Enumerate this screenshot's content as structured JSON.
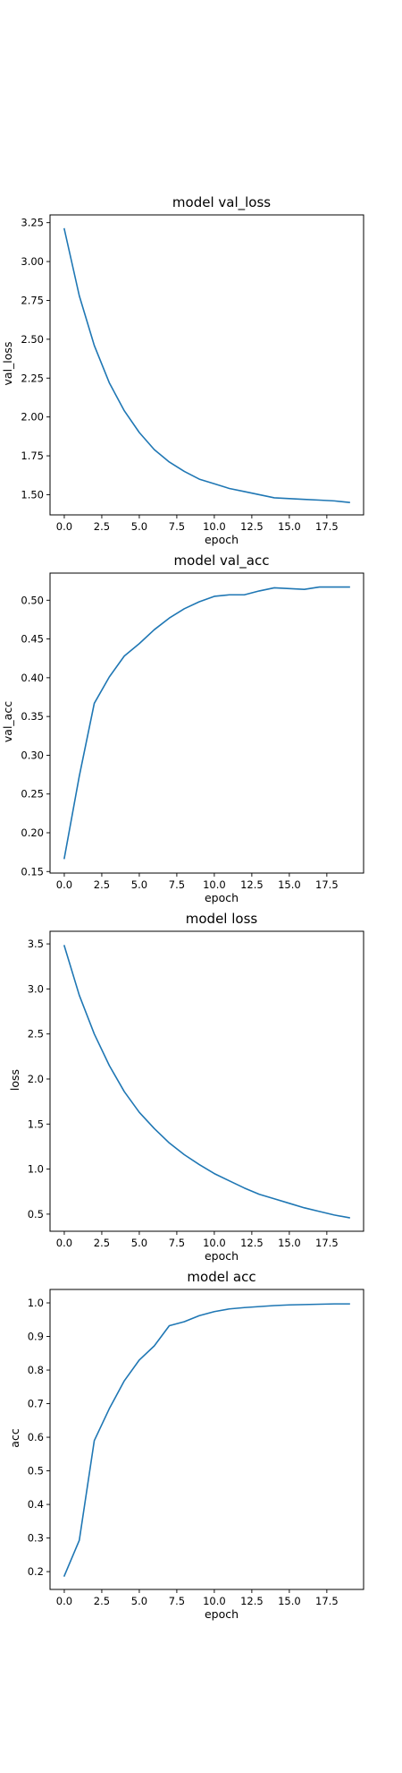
{
  "chart_data": [
    {
      "type": "line",
      "title": "model val_loss",
      "xlabel": "epoch",
      "ylabel": "val_loss",
      "xlim": [
        -0.95,
        19.95
      ],
      "ylim": [
        1.37,
        3.3
      ],
      "xticks": [
        0,
        2.5,
        5,
        7.5,
        10,
        12.5,
        15,
        17.5
      ],
      "xtick_labels": [
        "0.0",
        "2.5",
        "5.0",
        "7.5",
        "10.0",
        "12.5",
        "15.0",
        "17.5"
      ],
      "yticks": [
        1.5,
        1.75,
        2.0,
        2.25,
        2.5,
        2.75,
        3.0,
        3.25
      ],
      "ytick_labels": [
        "1.50",
        "1.75",
        "2.00",
        "2.25",
        "2.50",
        "2.75",
        "3.00",
        "3.25"
      ],
      "grid": false,
      "color": "#1f77b4",
      "x": [
        0,
        1,
        2,
        3,
        4,
        5,
        6,
        7,
        8,
        9,
        10,
        11,
        12,
        13,
        14,
        15,
        16,
        17,
        18,
        19
      ],
      "values": [
        3.21,
        2.78,
        2.46,
        2.22,
        2.04,
        1.9,
        1.79,
        1.71,
        1.65,
        1.6,
        1.57,
        1.54,
        1.52,
        1.5,
        1.48,
        1.475,
        1.47,
        1.465,
        1.46,
        1.45
      ]
    },
    {
      "type": "line",
      "title": "model val_acc",
      "xlabel": "epoch",
      "ylabel": "val_acc",
      "xlim": [
        -0.95,
        19.95
      ],
      "ylim": [
        0.148,
        0.535
      ],
      "xticks": [
        0,
        2.5,
        5,
        7.5,
        10,
        12.5,
        15,
        17.5
      ],
      "xtick_labels": [
        "0.0",
        "2.5",
        "5.0",
        "7.5",
        "10.0",
        "12.5",
        "15.0",
        "17.5"
      ],
      "yticks": [
        0.15,
        0.2,
        0.25,
        0.3,
        0.35,
        0.4,
        0.45,
        0.5
      ],
      "ytick_labels": [
        "0.15",
        "0.20",
        "0.25",
        "0.30",
        "0.35",
        "0.40",
        "0.45",
        "0.50"
      ],
      "grid": false,
      "color": "#1f77b4",
      "x": [
        0,
        1,
        2,
        3,
        4,
        5,
        6,
        7,
        8,
        9,
        10,
        11,
        12,
        13,
        14,
        15,
        16,
        17,
        18,
        19
      ],
      "values": [
        0.167,
        0.273,
        0.367,
        0.401,
        0.428,
        0.444,
        0.462,
        0.477,
        0.489,
        0.498,
        0.505,
        0.507,
        0.507,
        0.512,
        0.516,
        0.515,
        0.514,
        0.517,
        0.517,
        0.517
      ]
    },
    {
      "type": "line",
      "title": "model loss",
      "xlabel": "epoch",
      "ylabel": "loss",
      "xlim": [
        -0.95,
        19.95
      ],
      "ylim": [
        0.31,
        3.64
      ],
      "xticks": [
        0,
        2.5,
        5,
        7.5,
        10,
        12.5,
        15,
        17.5
      ],
      "xtick_labels": [
        "0.0",
        "2.5",
        "5.0",
        "7.5",
        "10.0",
        "12.5",
        "15.0",
        "17.5"
      ],
      "yticks": [
        0.5,
        1.0,
        1.5,
        2.0,
        2.5,
        3.0,
        3.5
      ],
      "ytick_labels": [
        "0.5",
        "1.0",
        "1.5",
        "2.0",
        "2.5",
        "3.0",
        "3.5"
      ],
      "grid": false,
      "color": "#1f77b4",
      "x": [
        0,
        1,
        2,
        3,
        4,
        5,
        6,
        7,
        8,
        9,
        10,
        11,
        12,
        13,
        14,
        15,
        16,
        17,
        18,
        19
      ],
      "values": [
        3.48,
        2.93,
        2.5,
        2.15,
        1.86,
        1.63,
        1.45,
        1.29,
        1.16,
        1.05,
        0.95,
        0.87,
        0.79,
        0.72,
        0.67,
        0.62,
        0.57,
        0.53,
        0.49,
        0.46
      ]
    },
    {
      "type": "line",
      "title": "model acc",
      "xlabel": "epoch",
      "ylabel": "acc",
      "xlim": [
        -0.95,
        19.95
      ],
      "ylim": [
        0.147,
        1.04
      ],
      "xticks": [
        0,
        2.5,
        5,
        7.5,
        10,
        12.5,
        15,
        17.5
      ],
      "xtick_labels": [
        "0.0",
        "2.5",
        "5.0",
        "7.5",
        "10.0",
        "12.5",
        "15.0",
        "17.5"
      ],
      "yticks": [
        0.2,
        0.3,
        0.4,
        0.5,
        0.6,
        0.7,
        0.8,
        0.9,
        1.0
      ],
      "ytick_labels": [
        "0.2",
        "0.3",
        "0.4",
        "0.5",
        "0.6",
        "0.7",
        "0.8",
        "0.9",
        "1.0"
      ],
      "grid": false,
      "color": "#1f77b4",
      "x": [
        0,
        1,
        2,
        3,
        4,
        5,
        6,
        7,
        8,
        9,
        10,
        11,
        12,
        13,
        14,
        15,
        16,
        17,
        18,
        19
      ],
      "values": [
        0.187,
        0.293,
        0.59,
        0.685,
        0.768,
        0.83,
        0.872,
        0.932,
        0.944,
        0.962,
        0.974,
        0.982,
        0.986,
        0.989,
        0.992,
        0.994,
        0.995,
        0.996,
        0.997,
        0.997
      ]
    }
  ]
}
